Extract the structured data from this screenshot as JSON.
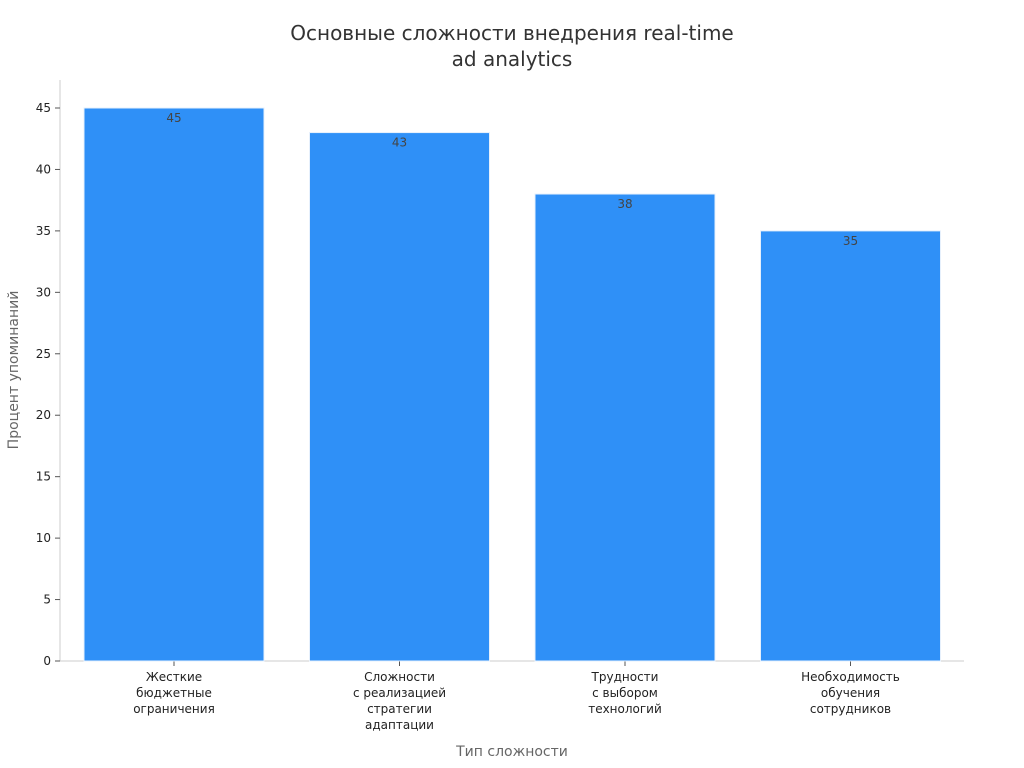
{
  "chart_data": {
    "type": "bar",
    "title": [
      "Основные сложности внедрения real-time",
      "ad analytics"
    ],
    "xlabel": "Тип сложности",
    "ylabel": "Процент упоминаний",
    "ylim": [
      0,
      45
    ],
    "yticks": [
      0,
      5,
      10,
      15,
      20,
      25,
      30,
      35,
      40,
      45
    ],
    "categories": [
      [
        "Жесткие",
        "бюджетные",
        "ограничения"
      ],
      [
        "Сложности",
        "с реализацией",
        "стратегии",
        "адаптации"
      ],
      [
        "Трудности",
        "с выбором",
        "технологий"
      ],
      [
        "Необходимость",
        "обучения",
        "сотрудников"
      ]
    ],
    "values": [
      45,
      43,
      38,
      35
    ],
    "bar_color": "#2f90f7",
    "grid": false,
    "legend": "none"
  }
}
